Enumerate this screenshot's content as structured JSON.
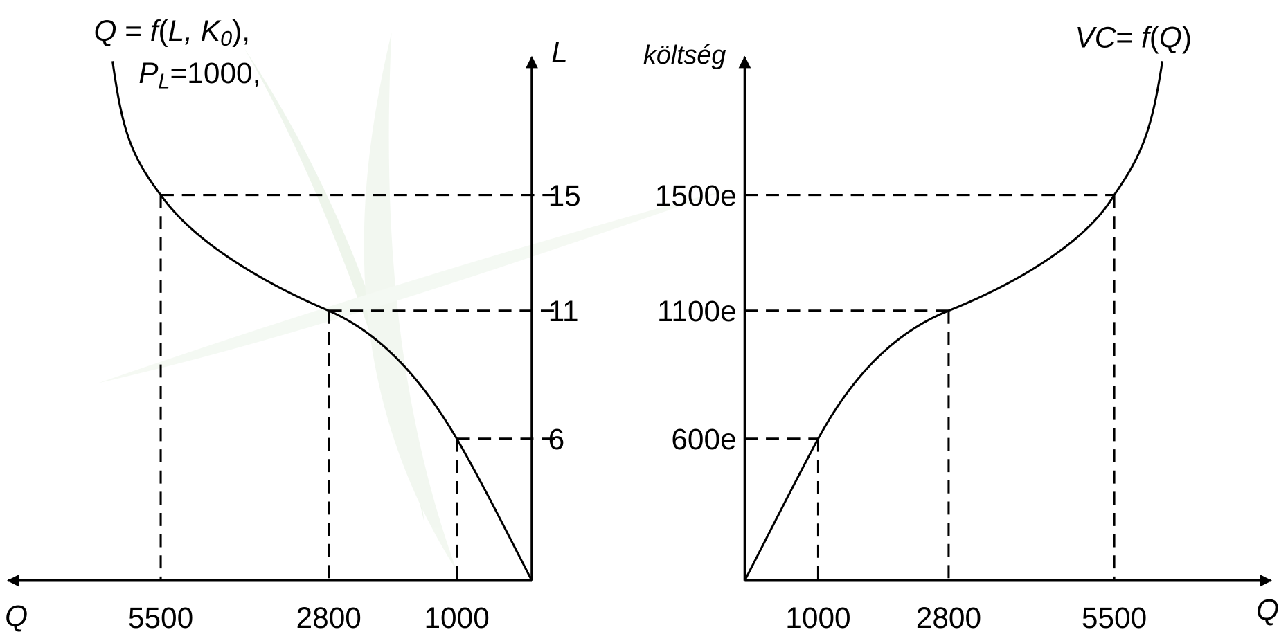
{
  "left_panel": {
    "function_label": [
      "Q",
      " = ",
      "f",
      "(",
      "L",
      ", ",
      "K",
      "0",
      "),"
    ],
    "price_label": [
      "P",
      "L",
      "=1000,"
    ],
    "y_axis_label": "L",
    "x_axis_label": "Q",
    "y_ticks": [
      "15",
      "11",
      "6"
    ],
    "x_ticks": [
      "5500",
      "2800",
      "1000"
    ]
  },
  "right_panel": {
    "function_label": [
      "VC",
      "= ",
      "f",
      "(",
      "Q",
      ")"
    ],
    "y_axis_label": "költség",
    "x_axis_label": "Q",
    "y_ticks": [
      "1500e",
      "1100e",
      "600e"
    ],
    "x_ticks": [
      "1000",
      "2800",
      "5500"
    ]
  }
}
